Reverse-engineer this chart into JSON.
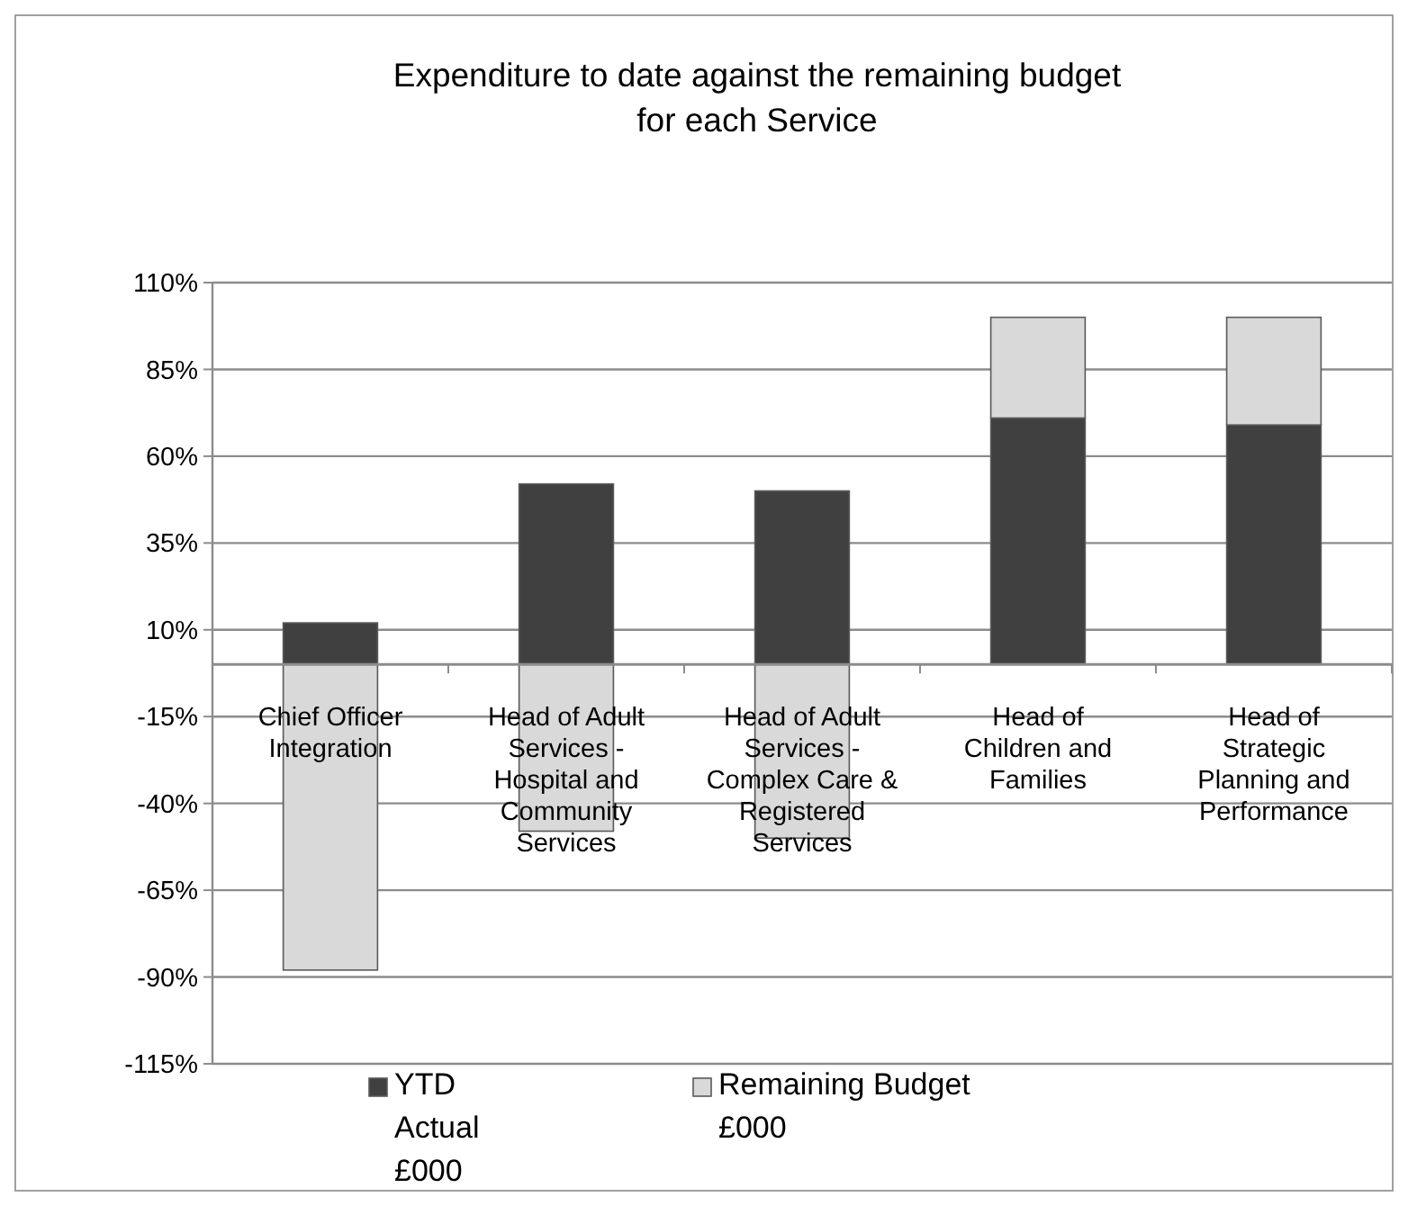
{
  "chart_data": {
    "type": "bar",
    "title": "Expenditure to date against the remaining budget\nfor each Service",
    "categories": [
      "Chief Officer Integration",
      "Head of Adult Services - Hospital and Community Services",
      "Head of Adult Services - Complex Care & Registered Services",
      "Head of Children and Families",
      "Head of Strategic Planning and Performance"
    ],
    "series": [
      {
        "name": "YTD Actual £000",
        "color": "#404040",
        "values": [
          12,
          52,
          50,
          71,
          69
        ]
      },
      {
        "name": "Remaining Budget £000",
        "color": "#d9d9d9",
        "values": [
          -88,
          -48,
          -50,
          29,
          31
        ]
      }
    ],
    "stacked": true,
    "ylim": [
      -115,
      110
    ],
    "yticks": [
      {
        "value": 110,
        "label": "110%"
      },
      {
        "value": 85,
        "label": "85%"
      },
      {
        "value": 60,
        "label": "60%"
      },
      {
        "value": 35,
        "label": "35%"
      },
      {
        "value": 10,
        "label": "10%"
      },
      {
        "value": -15,
        "label": "-15%"
      },
      {
        "value": -40,
        "label": "-40%"
      },
      {
        "value": -65,
        "label": "-65%"
      },
      {
        "value": -90,
        "label": "-90%"
      },
      {
        "value": -115,
        "label": "-115%"
      }
    ],
    "grid": "y",
    "legend": "bottom"
  }
}
